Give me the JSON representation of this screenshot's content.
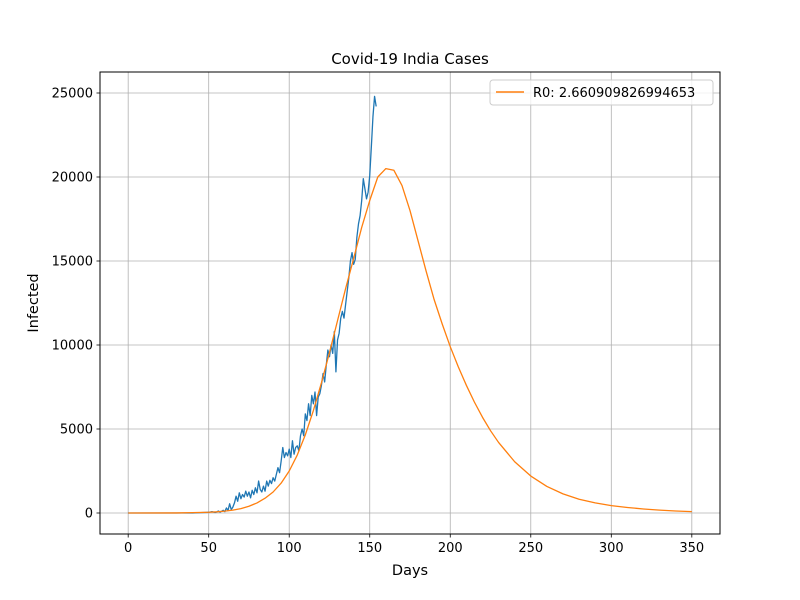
{
  "chart_data": {
    "type": "line",
    "title": "Covid-19 India Cases",
    "xlabel": "Days",
    "ylabel": "Infected",
    "xlim": [
      -17.5,
      367.5
    ],
    "ylim": [
      -1250,
      26250
    ],
    "x_ticks": [
      0,
      50,
      100,
      150,
      200,
      250,
      300,
      350
    ],
    "y_ticks": [
      0,
      5000,
      10000,
      15000,
      20000,
      25000
    ],
    "grid": true,
    "legend_position": "top-right",
    "series": [
      {
        "color": "#1f77b4",
        "points": [
          [
            0,
            0
          ],
          [
            10,
            0
          ],
          [
            20,
            0
          ],
          [
            30,
            0
          ],
          [
            40,
            0
          ],
          [
            45,
            20
          ],
          [
            50,
            40
          ],
          [
            52,
            80
          ],
          [
            54,
            30
          ],
          [
            55,
            60
          ],
          [
            56,
            120
          ],
          [
            57,
            50
          ],
          [
            58,
            100
          ],
          [
            59,
            160
          ],
          [
            60,
            80
          ],
          [
            61,
            300
          ],
          [
            62,
            150
          ],
          [
            63,
            550
          ],
          [
            64,
            200
          ],
          [
            65,
            350
          ],
          [
            66,
            600
          ],
          [
            67,
            1000
          ],
          [
            68,
            700
          ],
          [
            69,
            1200
          ],
          [
            70,
            850
          ],
          [
            71,
            1100
          ],
          [
            72,
            950
          ],
          [
            73,
            1300
          ],
          [
            74,
            1000
          ],
          [
            75,
            1250
          ],
          [
            76,
            900
          ],
          [
            77,
            1350
          ],
          [
            78,
            1100
          ],
          [
            79,
            1500
          ],
          [
            80,
            1200
          ],
          [
            81,
            1900
          ],
          [
            82,
            1400
          ],
          [
            83,
            1250
          ],
          [
            84,
            1600
          ],
          [
            85,
            1300
          ],
          [
            86,
            1900
          ],
          [
            87,
            1600
          ],
          [
            88,
            1950
          ],
          [
            89,
            1750
          ],
          [
            90,
            2100
          ],
          [
            91,
            1900
          ],
          [
            92,
            2300
          ],
          [
            93,
            2700
          ],
          [
            94,
            2400
          ],
          [
            95,
            3100
          ],
          [
            96,
            3900
          ],
          [
            97,
            3300
          ],
          [
            98,
            3600
          ],
          [
            99,
            3400
          ],
          [
            100,
            3800
          ],
          [
            101,
            3300
          ],
          [
            102,
            4300
          ],
          [
            103,
            3500
          ],
          [
            104,
            3900
          ],
          [
            105,
            4000
          ],
          [
            106,
            3700
          ],
          [
            107,
            4600
          ],
          [
            108,
            5000
          ],
          [
            109,
            4600
          ],
          [
            110,
            5900
          ],
          [
            111,
            5500
          ],
          [
            112,
            6500
          ],
          [
            113,
            5800
          ],
          [
            114,
            7000
          ],
          [
            115,
            6500
          ],
          [
            116,
            7200
          ],
          [
            117,
            5800
          ],
          [
            118,
            6900
          ],
          [
            119,
            7100
          ],
          [
            120,
            7600
          ],
          [
            121,
            8300
          ],
          [
            122,
            7800
          ],
          [
            123,
            8800
          ],
          [
            124,
            9700
          ],
          [
            125,
            9300
          ],
          [
            126,
            10000
          ],
          [
            127,
            9500
          ],
          [
            128,
            10800
          ],
          [
            129,
            8400
          ],
          [
            130,
            10300
          ],
          [
            131,
            10700
          ],
          [
            132,
            11600
          ],
          [
            133,
            12000
          ],
          [
            134,
            11600
          ],
          [
            135,
            12400
          ],
          [
            136,
            13200
          ],
          [
            137,
            14000
          ],
          [
            138,
            15000
          ],
          [
            139,
            15500
          ],
          [
            140,
            14800
          ],
          [
            141,
            15100
          ],
          [
            142,
            16400
          ],
          [
            143,
            17200
          ],
          [
            144,
            17700
          ],
          [
            145,
            18600
          ],
          [
            146,
            19900
          ],
          [
            147,
            19300
          ],
          [
            148,
            18700
          ],
          [
            149,
            19100
          ],
          [
            150,
            20100
          ],
          [
            151,
            21800
          ],
          [
            152,
            23600
          ],
          [
            153,
            24800
          ],
          [
            154,
            24200
          ]
        ]
      },
      {
        "name": "R0: 2.660909826994653",
        "color": "#ff7f0e",
        "points": [
          [
            0,
            0
          ],
          [
            30,
            5
          ],
          [
            40,
            20
          ],
          [
            50,
            45
          ],
          [
            55,
            70
          ],
          [
            60,
            110
          ],
          [
            65,
            170
          ],
          [
            70,
            260
          ],
          [
            75,
            400
          ],
          [
            80,
            600
          ],
          [
            85,
            880
          ],
          [
            90,
            1250
          ],
          [
            95,
            1780
          ],
          [
            100,
            2500
          ],
          [
            105,
            3450
          ],
          [
            110,
            4650
          ],
          [
            115,
            6100
          ],
          [
            120,
            7750
          ],
          [
            125,
            9550
          ],
          [
            130,
            11450
          ],
          [
            135,
            13350
          ],
          [
            140,
            15150
          ],
          [
            145,
            17000
          ],
          [
            150,
            18600
          ],
          [
            155,
            20000
          ],
          [
            160,
            20500
          ],
          [
            165,
            20400
          ],
          [
            170,
            19500
          ],
          [
            175,
            18000
          ],
          [
            180,
            16200
          ],
          [
            185,
            14400
          ],
          [
            190,
            12700
          ],
          [
            195,
            11250
          ],
          [
            200,
            9900
          ],
          [
            205,
            8700
          ],
          [
            210,
            7600
          ],
          [
            215,
            6600
          ],
          [
            220,
            5700
          ],
          [
            225,
            4900
          ],
          [
            230,
            4200
          ],
          [
            240,
            3050
          ],
          [
            250,
            2200
          ],
          [
            260,
            1580
          ],
          [
            270,
            1140
          ],
          [
            280,
            820
          ],
          [
            290,
            600
          ],
          [
            300,
            440
          ],
          [
            310,
            330
          ],
          [
            320,
            240
          ],
          [
            330,
            170
          ],
          [
            340,
            120
          ],
          [
            350,
            80
          ]
        ]
      }
    ]
  }
}
